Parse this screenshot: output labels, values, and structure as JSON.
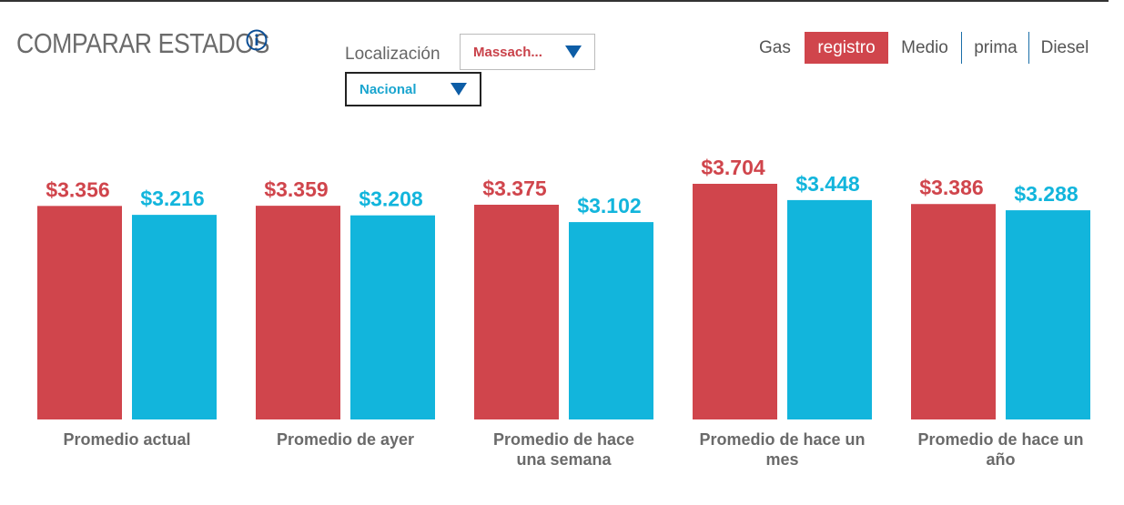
{
  "header": {
    "title": "COMPARAR ESTADOS"
  },
  "location": {
    "label": "Localización",
    "primary_value": "Massach...",
    "secondary_value": "Nacional"
  },
  "fuel": {
    "label": "Gas",
    "tabs": [
      "registro",
      "Medio",
      "prima",
      "Diesel"
    ],
    "active": "registro"
  },
  "colors": {
    "primary": "#d0454c",
    "secondary": "#12b5dc",
    "active_tab": "#d0454c"
  },
  "chart_data": {
    "type": "bar",
    "title": "",
    "categories": [
      "Promedio actual",
      "Promedio de ayer",
      "Promedio de hace una semana",
      "Promedio de hace un mes",
      "Promedio de hace un año"
    ],
    "category_lines": [
      [
        "Promedio actual"
      ],
      [
        "Promedio de ayer"
      ],
      [
        "Promedio de hace",
        "una semana"
      ],
      [
        "Promedio de hace un",
        "mes"
      ],
      [
        "Promedio de hace un",
        "año"
      ]
    ],
    "series": [
      {
        "name": "Massach...",
        "color": "#d0454c",
        "values": [
          3.356,
          3.359,
          3.375,
          3.704,
          3.386
        ],
        "labels": [
          "$3.356",
          "$3.359",
          "$3.375",
          "$3.704",
          "$3.386"
        ]
      },
      {
        "name": "Nacional",
        "color": "#12b5dc",
        "values": [
          3.216,
          3.208,
          3.102,
          3.448,
          3.288
        ],
        "labels": [
          "$3.216",
          "$3.208",
          "$3.102",
          "$3.448",
          "$3.288"
        ]
      }
    ],
    "xlabel": "",
    "ylabel": "",
    "ylim": [
      0,
      4.2
    ],
    "grid": false
  }
}
